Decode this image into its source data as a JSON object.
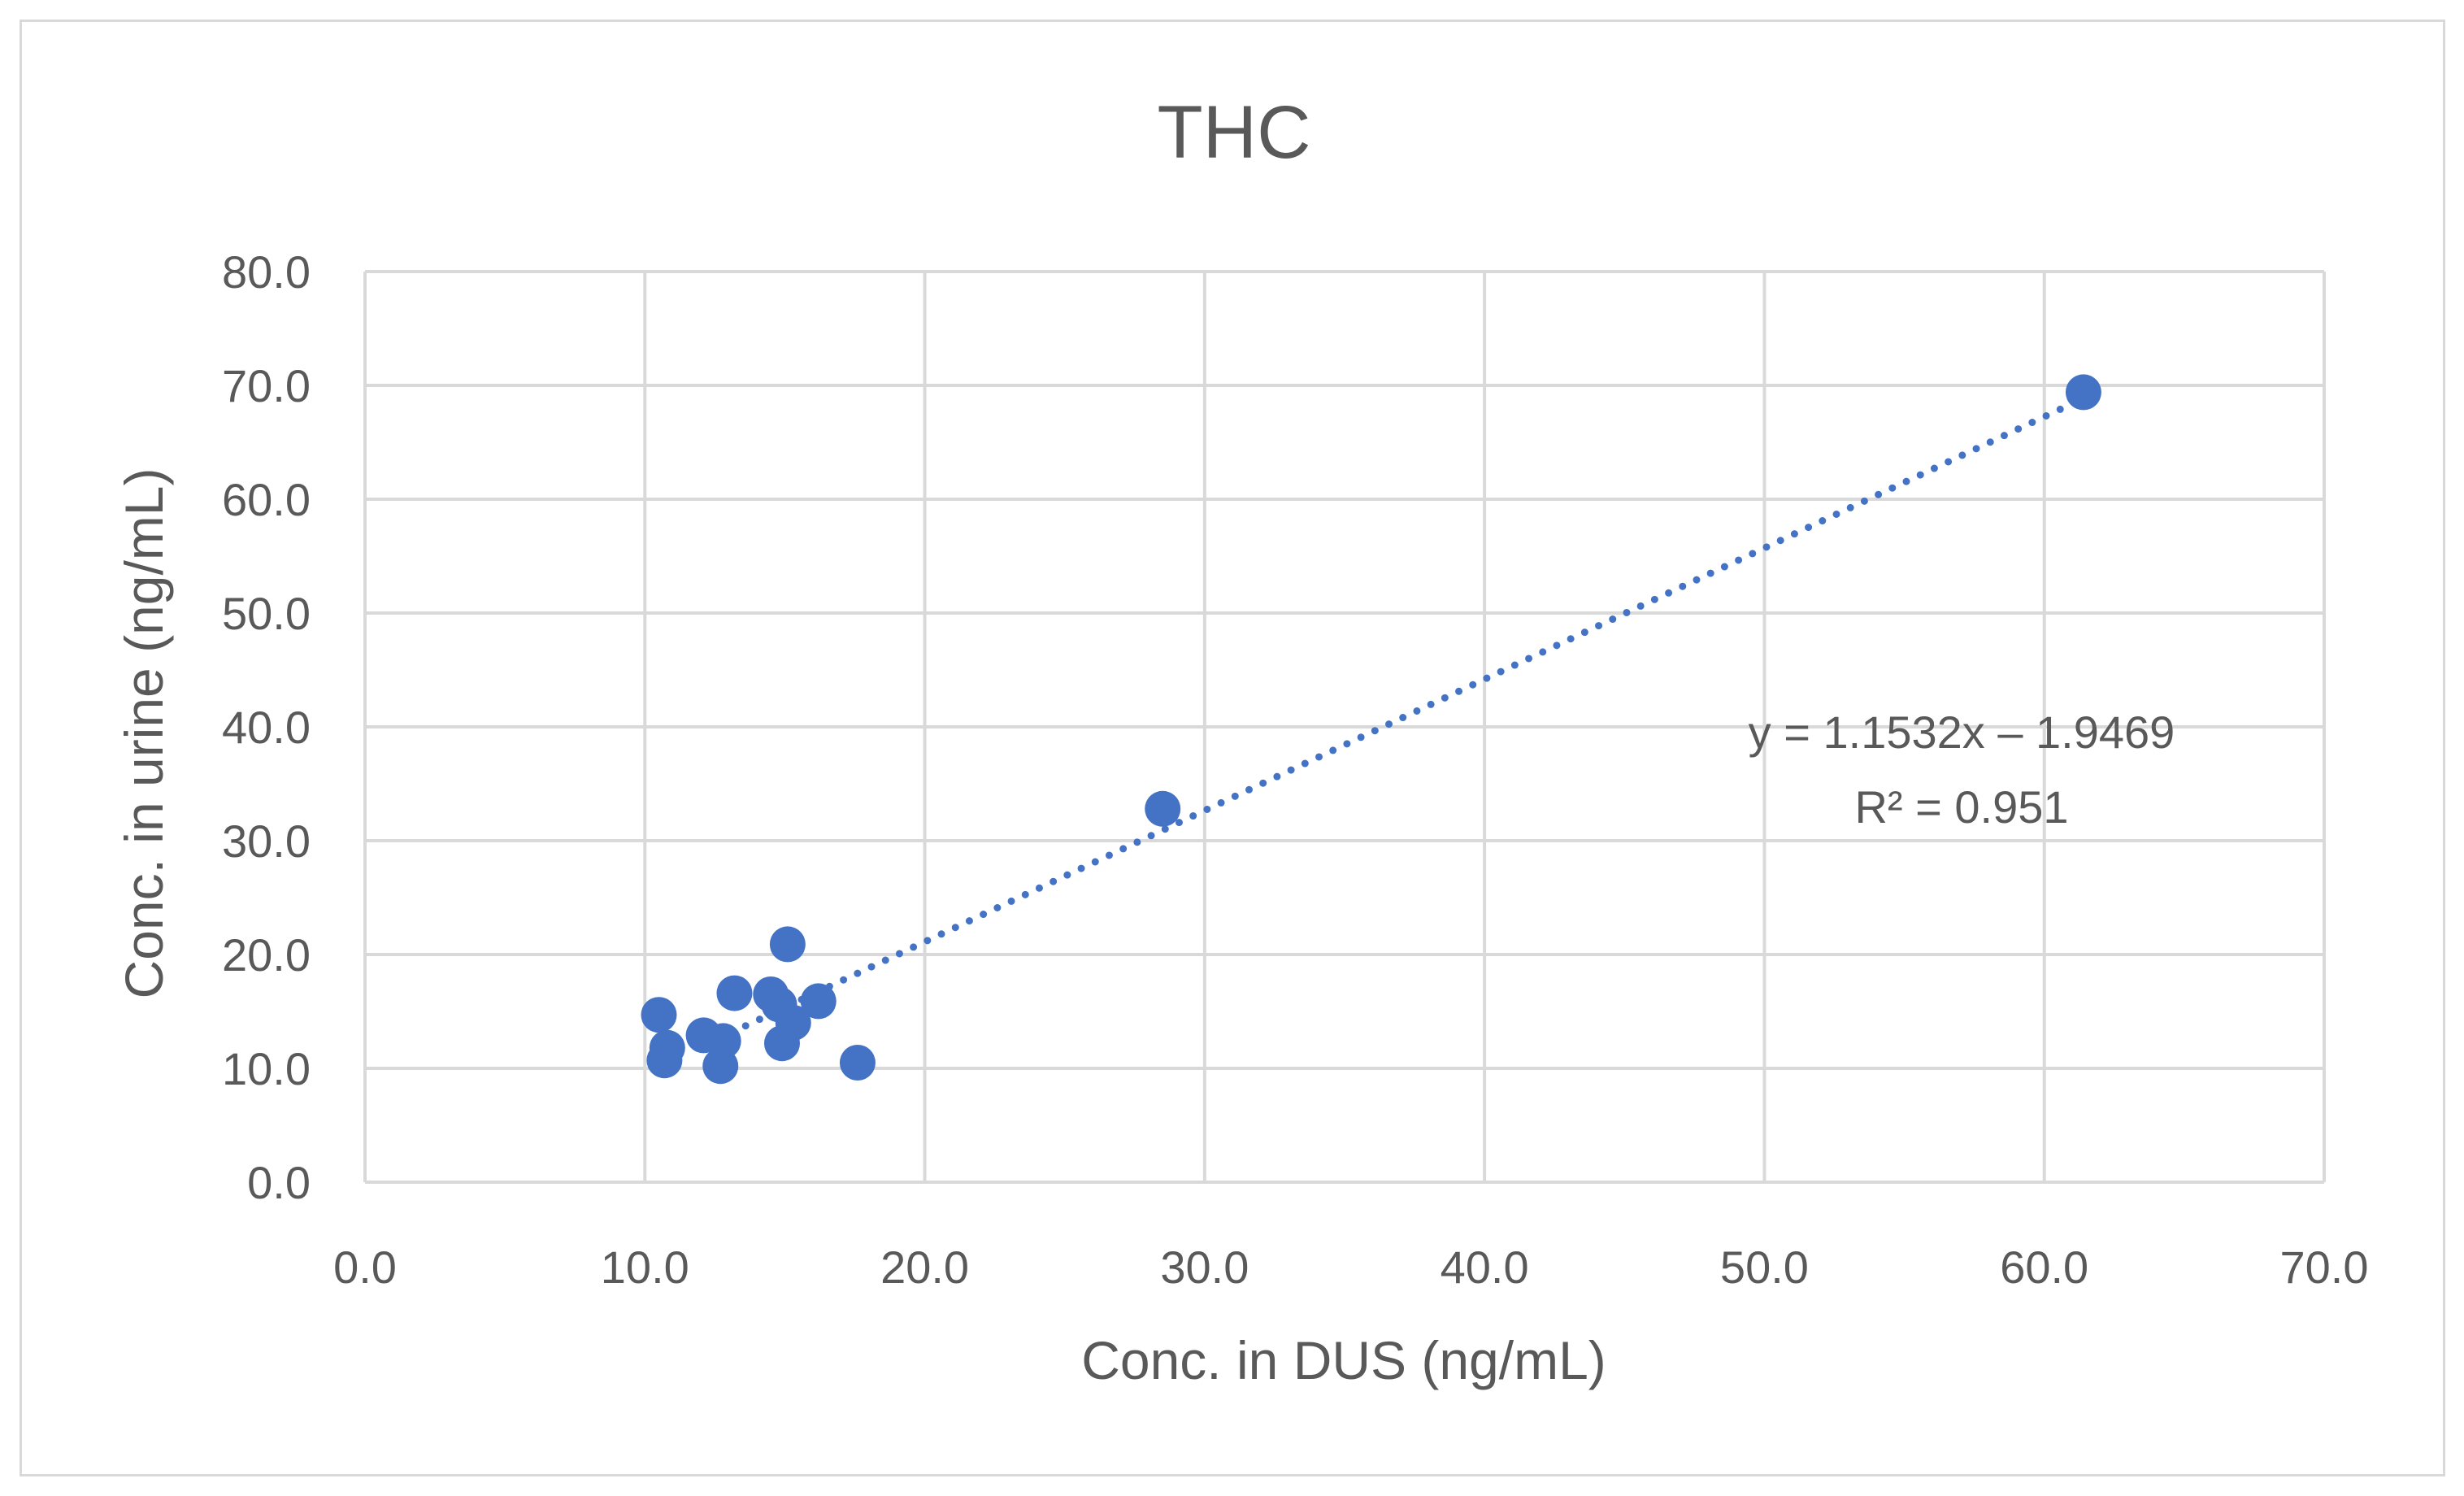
{
  "chart_data": {
    "type": "scatter",
    "title": "THC",
    "xlabel": "Conc. in DUS (ng/mL)",
    "ylabel": "Conc. in urine (ng/mL)",
    "xlim": [
      0,
      70
    ],
    "ylim": [
      0,
      80
    ],
    "x_ticks": [
      0,
      10,
      20,
      30,
      40,
      50,
      60,
      70
    ],
    "y_ticks": [
      0,
      10,
      20,
      30,
      40,
      50,
      60,
      70,
      80
    ],
    "x_tick_labels": [
      "0.0",
      "10.0",
      "20.0",
      "30.0",
      "40.0",
      "50.0",
      "60.0",
      "70.0"
    ],
    "y_tick_labels": [
      "0.0",
      "10.0",
      "20.0",
      "30.0",
      "40.0",
      "50.0",
      "60.0",
      "70.0",
      "80.0"
    ],
    "grid": true,
    "series": [
      {
        "name": "THC",
        "color": "#4472c4",
        "points": [
          {
            "x": 10.5,
            "y": 14.7
          },
          {
            "x": 10.8,
            "y": 11.8
          },
          {
            "x": 10.7,
            "y": 10.7
          },
          {
            "x": 12.1,
            "y": 12.9
          },
          {
            "x": 12.7,
            "y": 10.2
          },
          {
            "x": 12.8,
            "y": 12.4
          },
          {
            "x": 13.2,
            "y": 16.6
          },
          {
            "x": 14.5,
            "y": 16.5
          },
          {
            "x": 14.8,
            "y": 15.6
          },
          {
            "x": 14.9,
            "y": 12.2
          },
          {
            "x": 15.1,
            "y": 20.9
          },
          {
            "x": 15.3,
            "y": 14.0
          },
          {
            "x": 16.2,
            "y": 15.9
          },
          {
            "x": 17.6,
            "y": 10.5
          },
          {
            "x": 28.5,
            "y": 32.8
          },
          {
            "x": 61.4,
            "y": 69.4
          }
        ]
      }
    ],
    "trendline": {
      "type": "linear",
      "color": "#4472c4",
      "slope": 1.1532,
      "intercept": -1.9469,
      "x_range": [
        12.6,
        61.4
      ],
      "equation_label": "y = 1.1532x – 1.9469",
      "r2_label": "R² = 0.951"
    }
  },
  "colors": {
    "grid": "#d9d9d9",
    "text": "#595959",
    "border": "#d9d9d9"
  }
}
